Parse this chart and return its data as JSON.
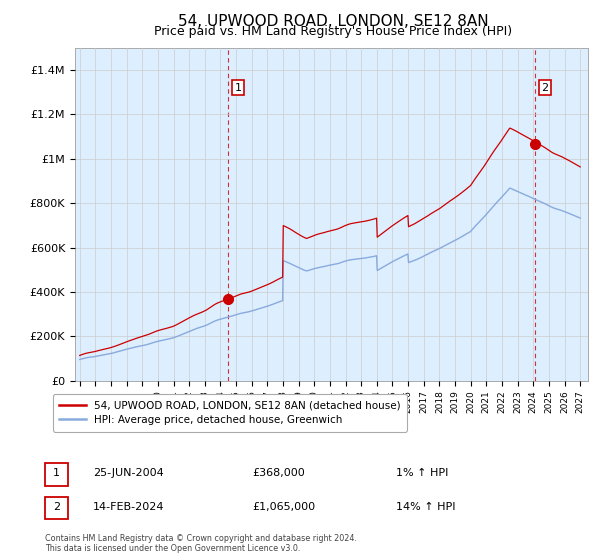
{
  "title": "54, UPWOOD ROAD, LONDON, SE12 8AN",
  "subtitle": "Price paid vs. HM Land Registry's House Price Index (HPI)",
  "ylabel_ticks": [
    "£0",
    "£200K",
    "£400K",
    "£600K",
    "£800K",
    "£1M",
    "£1.2M",
    "£1.4M"
  ],
  "ytick_values": [
    0,
    200000,
    400000,
    600000,
    800000,
    1000000,
    1200000,
    1400000
  ],
  "ylim": [
    0,
    1500000
  ],
  "x_start_year": 1995,
  "x_end_year": 2027,
  "chart_bg_color": "#ddeeff",
  "hpi_color": "#88aadd",
  "price_color": "#cc0000",
  "marker1_price": 368000,
  "marker1_x": 2004.5,
  "marker1_label": "1",
  "marker2_price": 1065000,
  "marker2_x": 2024.12,
  "marker2_label": "2",
  "legend_line1": "54, UPWOOD ROAD, LONDON, SE12 8AN (detached house)",
  "legend_line2": "HPI: Average price, detached house, Greenwich",
  "annotation1_num": "1",
  "annotation1_date": "25-JUN-2004",
  "annotation1_price": "£368,000",
  "annotation1_hpi": "1% ↑ HPI",
  "annotation2_num": "2",
  "annotation2_date": "14-FEB-2024",
  "annotation2_price": "£1,065,000",
  "annotation2_hpi": "14% ↑ HPI",
  "footer": "Contains HM Land Registry data © Crown copyright and database right 2024.\nThis data is licensed under the Open Government Licence v3.0.",
  "background_color": "#ffffff",
  "grid_color": "#cccccc",
  "title_fontsize": 11,
  "subtitle_fontsize": 9
}
